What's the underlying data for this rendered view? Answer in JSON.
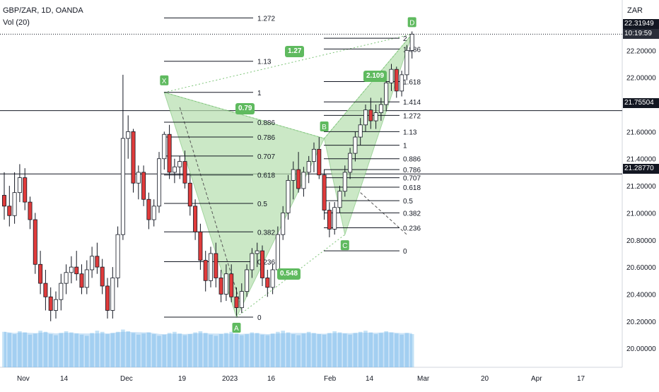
{
  "header": {
    "symbol_line": "GBP/ZAR, 1D, OANDA",
    "indicator_line": "Vol (20)",
    "currency": "ZAR"
  },
  "price_tags": {
    "last_price": "22.31949",
    "countdown": "10:19:59",
    "level_upper": "21.75504",
    "level_lower": "21.28770"
  },
  "colors": {
    "up_candle": "#ffffff",
    "down_candle": "#e03b3b",
    "pattern_fill": "#b6dfae",
    "pattern_point": "#5fba5f",
    "volume": "#90c8ef",
    "volume_ma": "#6aaee8",
    "axis_text": "#131722"
  },
  "chart_data": {
    "type": "candlestick",
    "y_axis": {
      "range": [
        19.86,
        22.52
      ],
      "ticks": [
        "22.20000",
        "22.00000",
        "21.80000",
        "21.60000",
        "21.40000",
        "21.20000",
        "21.00000",
        "20.80000",
        "20.60000",
        "20.40000",
        "20.20000",
        "20.00000"
      ]
    },
    "x_axis": {
      "ticks": [
        "Nov",
        "14",
        "Dec",
        "19",
        "2023",
        "16",
        "Feb",
        "14",
        "Mar",
        "20",
        "Apr",
        "17"
      ]
    },
    "horizontal_levels": [
      21.75504,
      21.2877
    ],
    "harmonic_pattern": {
      "points": [
        {
          "label": "X",
          "price": 21.89
        },
        {
          "label": "A",
          "price": 20.23
        },
        {
          "label": "B",
          "price": 21.55
        },
        {
          "label": "C",
          "price": 20.84
        },
        {
          "label": "D",
          "price": 22.32
        }
      ],
      "ratios": [
        "0.79",
        "0.548",
        "2.109",
        "1.27"
      ]
    },
    "fib_xa": {
      "levels": [
        {
          "label": "1.272",
          "price": 22.44
        },
        {
          "label": "1.13",
          "price": 22.12
        },
        {
          "label": "1",
          "price": 21.89
        },
        {
          "label": "0.886",
          "price": 21.67
        },
        {
          "label": "0.786",
          "price": 21.56
        },
        {
          "label": "0.707",
          "price": 21.42
        },
        {
          "label": "0.618",
          "price": 21.28
        },
        {
          "label": "0.5",
          "price": 21.07
        },
        {
          "label": "0.382",
          "price": 20.86
        },
        {
          "label": "0.236",
          "price": 20.64
        },
        {
          "label": "0",
          "price": 20.23
        }
      ]
    },
    "fib_bc": {
      "levels": [
        {
          "label": "2",
          "price": 22.29
        },
        {
          "label": "1.886",
          "price": 22.21
        },
        {
          "label": "1.618",
          "price": 21.97
        },
        {
          "label": "1.414",
          "price": 21.82
        },
        {
          "label": "1.272",
          "price": 21.72
        },
        {
          "label": "1.13",
          "price": 21.6
        },
        {
          "label": "1",
          "price": 21.5
        },
        {
          "label": "0.886",
          "price": 21.4
        },
        {
          "label": "0.786",
          "price": 21.32
        },
        {
          "label": "0.707",
          "price": 21.26
        },
        {
          "label": "0.618",
          "price": 21.19
        },
        {
          "label": "0.5",
          "price": 21.09
        },
        {
          "label": "0.382",
          "price": 21.0
        },
        {
          "label": "0.236",
          "price": 20.89
        },
        {
          "label": "0",
          "price": 20.72
        }
      ]
    },
    "candles_ohlc": [
      [
        21.13,
        21.3,
        20.95,
        21.05
      ],
      [
        21.05,
        21.2,
        20.9,
        20.98
      ],
      [
        20.98,
        21.3,
        20.92,
        21.15
      ],
      [
        21.15,
        21.36,
        21.08,
        21.26
      ],
      [
        21.26,
        21.33,
        21.02,
        21.08
      ],
      [
        21.08,
        21.12,
        20.88,
        20.95
      ],
      [
        20.95,
        21.0,
        20.55,
        20.62
      ],
      [
        20.62,
        20.72,
        20.4,
        20.48
      ],
      [
        20.48,
        20.58,
        20.28,
        20.38
      ],
      [
        20.38,
        20.45,
        20.2,
        20.28
      ],
      [
        20.28,
        20.42,
        20.22,
        20.36
      ],
      [
        20.36,
        20.55,
        20.28,
        20.48
      ],
      [
        20.48,
        20.62,
        20.4,
        20.56
      ],
      [
        20.56,
        20.68,
        20.48,
        20.6
      ],
      [
        20.6,
        20.72,
        20.5,
        20.55
      ],
      [
        20.55,
        20.62,
        20.4,
        20.45
      ],
      [
        20.45,
        20.65,
        20.4,
        20.58
      ],
      [
        20.58,
        20.75,
        20.52,
        20.68
      ],
      [
        20.68,
        20.78,
        20.55,
        20.6
      ],
      [
        20.6,
        20.66,
        20.4,
        20.46
      ],
      [
        20.46,
        20.52,
        20.22,
        20.28
      ],
      [
        20.28,
        20.6,
        20.22,
        20.52
      ],
      [
        20.52,
        20.9,
        20.45,
        20.84
      ],
      [
        20.84,
        22.02,
        20.8,
        21.55
      ],
      [
        21.55,
        21.72,
        21.4,
        21.6
      ],
      [
        21.6,
        21.62,
        21.15,
        21.22
      ],
      [
        21.22,
        21.35,
        21.1,
        21.3
      ],
      [
        21.3,
        21.35,
        21.05,
        21.1
      ],
      [
        21.1,
        21.15,
        20.88,
        20.95
      ],
      [
        20.95,
        21.1,
        20.9,
        21.05
      ],
      [
        21.05,
        21.45,
        21.0,
        21.4
      ],
      [
        21.4,
        21.6,
        21.32,
        21.58
      ],
      [
        21.58,
        21.65,
        21.25,
        21.3
      ],
      [
        21.3,
        21.4,
        21.22,
        21.34
      ],
      [
        21.34,
        21.42,
        21.25,
        21.38
      ],
      [
        21.38,
        21.46,
        21.18,
        21.22
      ],
      [
        21.22,
        21.28,
        20.98,
        21.05
      ],
      [
        21.05,
        21.1,
        20.8,
        20.86
      ],
      [
        20.86,
        20.92,
        20.58,
        20.65
      ],
      [
        20.65,
        20.72,
        20.42,
        20.5
      ],
      [
        20.5,
        20.75,
        20.45,
        20.7
      ],
      [
        20.7,
        20.78,
        20.45,
        20.52
      ],
      [
        20.52,
        20.58,
        20.34,
        20.4
      ],
      [
        20.4,
        20.62,
        20.35,
        20.55
      ],
      [
        20.55,
        20.62,
        20.34,
        20.38
      ],
      [
        20.38,
        20.45,
        20.24,
        20.3
      ],
      [
        20.3,
        20.48,
        20.26,
        20.42
      ],
      [
        20.42,
        20.62,
        20.38,
        20.58
      ],
      [
        20.58,
        20.74,
        20.52,
        20.7
      ],
      [
        20.7,
        20.78,
        20.6,
        20.72
      ],
      [
        20.72,
        20.76,
        20.46,
        20.52
      ],
      [
        20.52,
        20.58,
        20.38,
        20.45
      ],
      [
        20.45,
        20.62,
        20.4,
        20.58
      ],
      [
        20.58,
        20.9,
        20.55,
        20.84
      ],
      [
        20.84,
        21.05,
        20.8,
        21.0
      ],
      [
        21.0,
        21.28,
        20.95,
        21.24
      ],
      [
        21.24,
        21.38,
        21.1,
        21.32
      ],
      [
        21.32,
        21.45,
        21.15,
        21.18
      ],
      [
        21.18,
        21.34,
        21.12,
        21.3
      ],
      [
        21.3,
        21.42,
        21.22,
        21.38
      ],
      [
        21.38,
        21.52,
        21.3,
        21.47
      ],
      [
        21.47,
        21.56,
        21.25,
        21.28
      ],
      [
        21.28,
        21.32,
        20.95,
        21.02
      ],
      [
        21.02,
        21.08,
        20.82,
        20.88
      ],
      [
        20.88,
        21.08,
        20.84,
        21.04
      ],
      [
        21.04,
        21.2,
        21.0,
        21.16
      ],
      [
        21.16,
        21.35,
        21.12,
        21.3
      ],
      [
        21.3,
        21.48,
        21.25,
        21.44
      ],
      [
        21.44,
        21.6,
        21.38,
        21.56
      ],
      [
        21.56,
        21.7,
        21.5,
        21.65
      ],
      [
        21.65,
        21.8,
        21.6,
        21.76
      ],
      [
        21.76,
        21.85,
        21.62,
        21.68
      ],
      [
        21.68,
        21.8,
        21.62,
        21.74
      ],
      [
        21.74,
        21.85,
        21.68,
        21.8
      ],
      [
        21.8,
        22.0,
        21.75,
        21.96
      ],
      [
        21.96,
        22.1,
        21.9,
        22.06
      ],
      [
        22.06,
        22.08,
        21.85,
        21.9
      ],
      [
        21.9,
        22.05,
        21.86,
        22.02
      ],
      [
        22.02,
        22.24,
        21.98,
        22.2
      ],
      [
        22.2,
        22.34,
        22.14,
        22.32
      ]
    ],
    "volume": [
      0.62,
      0.6,
      0.58,
      0.63,
      0.61,
      0.57,
      0.59,
      0.64,
      0.62,
      0.58,
      0.56,
      0.6,
      0.63,
      0.61,
      0.59,
      0.57,
      0.55,
      0.6,
      0.64,
      0.62,
      0.58,
      0.6,
      0.62,
      0.66,
      0.63,
      0.6,
      0.57,
      0.59,
      0.61,
      0.58,
      0.55,
      0.57,
      0.6,
      0.62,
      0.59,
      0.56,
      0.58,
      0.61,
      0.63,
      0.6,
      0.57,
      0.55,
      0.58,
      0.6,
      0.62,
      0.59,
      0.56,
      0.58,
      0.61,
      0.6,
      0.57,
      0.56,
      0.59,
      0.62,
      0.64,
      0.61,
      0.58,
      0.56,
      0.59,
      0.62,
      0.6,
      0.58,
      0.57,
      0.6,
      0.63,
      0.61,
      0.59,
      0.57,
      0.6,
      0.62,
      0.64,
      0.61,
      0.58,
      0.6,
      0.63,
      0.61,
      0.59,
      0.57,
      0.6,
      0.58
    ]
  }
}
